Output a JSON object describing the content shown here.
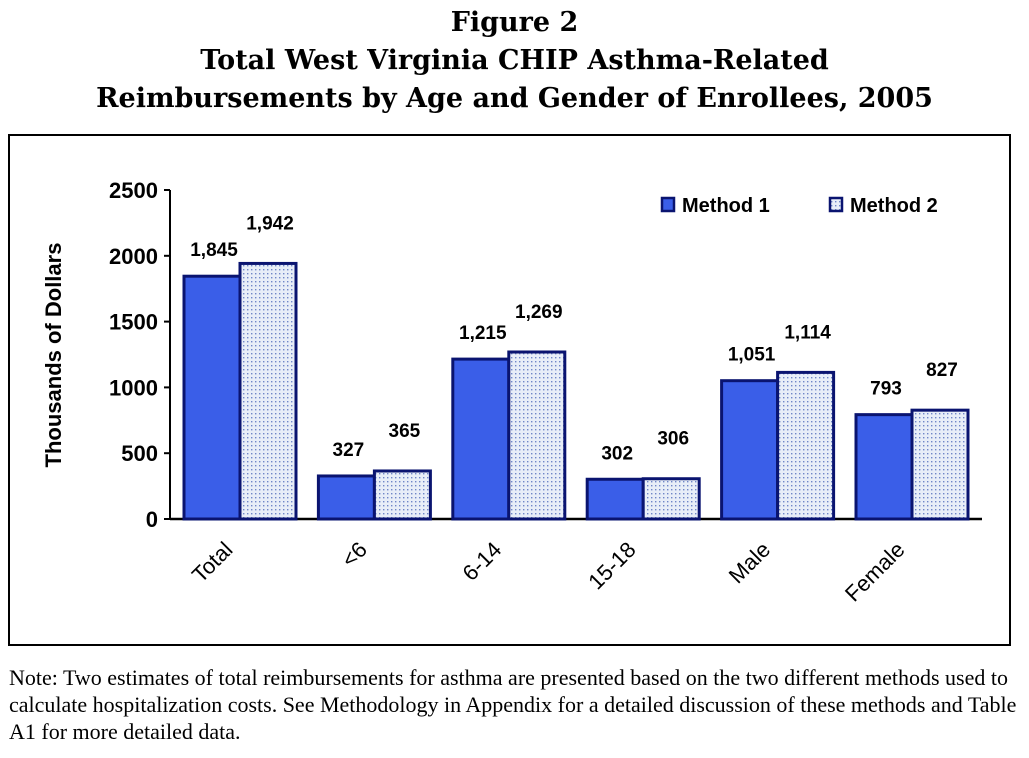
{
  "figure": {
    "label": "Figure 2",
    "title_line1": "Total West Virginia CHIP Asthma-Related",
    "title_line2": "Reimbursements by Age and Gender of Enrollees, 2005"
  },
  "note": "Note: Two estimates of total reimbursements for asthma are presented based on the two different methods used to calculate hospitalization costs. See Methodology in Appendix for a detailed discussion of these methods and Table A1 for more detailed data.",
  "colors": {
    "method1_fill": "#3a5ee8",
    "method2_fill": "#e8eef8",
    "method2_dots": "#6f86c8",
    "bar_stroke": "#0a1470"
  },
  "chart_data": {
    "type": "bar",
    "categories": [
      "Total",
      "<6",
      "6-14",
      "15-18",
      "Male",
      "Female"
    ],
    "series": [
      {
        "name": "Method 1",
        "values": [
          1845,
          327,
          1215,
          302,
          1051,
          793
        ],
        "labels": [
          "1,845",
          "327",
          "1,215",
          "302",
          "1,051",
          "793"
        ]
      },
      {
        "name": "Method 2",
        "values": [
          1942,
          365,
          1269,
          306,
          1114,
          827
        ],
        "labels": [
          "1,942",
          "365",
          "1,269",
          "306",
          "1,114",
          "827"
        ]
      }
    ],
    "ylabel": "Thousands of Dollars",
    "xlabel": "",
    "ylim": [
      0,
      2500
    ],
    "yticks": [
      0,
      500,
      1000,
      1500,
      2000,
      2500
    ],
    "grid": false,
    "legend_position": "top-right"
  }
}
